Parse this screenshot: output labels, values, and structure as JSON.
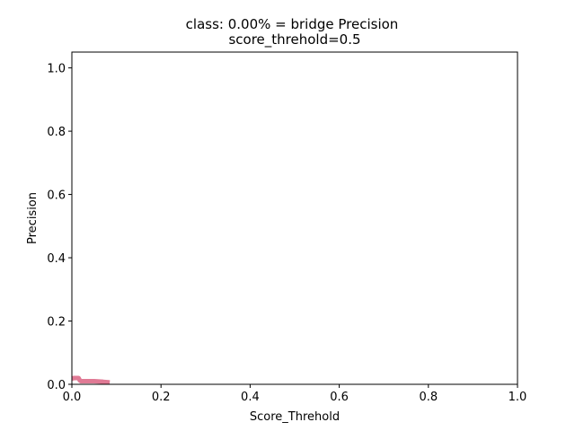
{
  "chart_data": {
    "type": "line",
    "title": "class: 0.00% = bridge Precision",
    "subtitle": "score_threhold=0.5",
    "xlabel": "Score_Threhold",
    "ylabel": "Precision",
    "xlim": [
      0.0,
      1.0
    ],
    "ylim": [
      0.0,
      1.05
    ],
    "x_ticks": [
      0.0,
      0.2,
      0.4,
      0.6,
      0.8,
      1.0
    ],
    "x_tick_labels": [
      "0.0",
      "0.2",
      "0.4",
      "0.6",
      "0.8",
      "1.0"
    ],
    "y_ticks": [
      0.0,
      0.2,
      0.4,
      0.6,
      0.8,
      1.0
    ],
    "y_tick_labels": [
      "0.0",
      "0.2",
      "0.4",
      "0.6",
      "0.8",
      "1.0"
    ],
    "grid": false,
    "series": [
      {
        "color": "#e07a95",
        "x": [
          0.0,
          0.005,
          0.01,
          0.015,
          0.018,
          0.02,
          0.03,
          0.05,
          0.07,
          0.085
        ],
        "y": [
          0.018,
          0.02,
          0.02,
          0.02,
          0.012,
          0.01,
          0.01,
          0.01,
          0.008,
          0.006
        ]
      }
    ]
  }
}
